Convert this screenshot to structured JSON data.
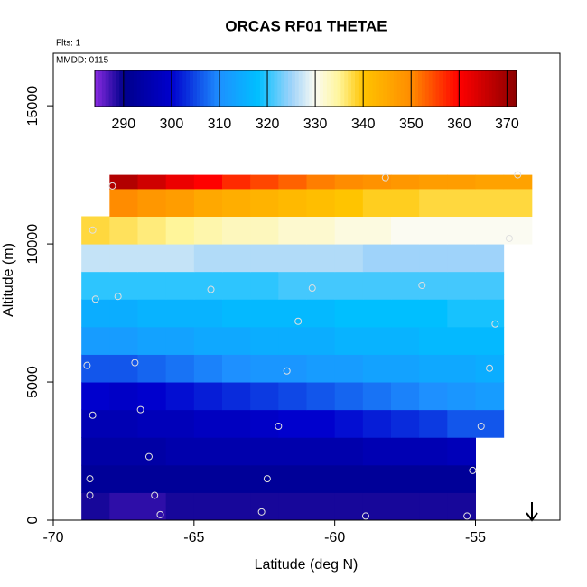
{
  "chart_data": {
    "type": "heatmap",
    "title": "ORCAS RF01 THETAE",
    "subtitle": "Flts: 1",
    "annotation": "MMDD: 0115",
    "x_label": "Latitude (deg N)",
    "y_label": "Altitude (m)",
    "xlim": [
      -70,
      -52
    ],
    "xticks": [
      -70,
      -65,
      -60,
      -55
    ],
    "ylim": [
      0,
      16900
    ],
    "yticks": [
      0,
      5000,
      10000,
      15000
    ],
    "x_edges": [
      -69,
      -68,
      -67,
      -66,
      -65,
      -64,
      -63,
      -62,
      -61,
      -60,
      -59,
      -58,
      -57,
      -56,
      -55,
      -54,
      -53
    ],
    "y_edges": [
      0,
      1000,
      2000,
      3000,
      4000,
      5000,
      6000,
      7000,
      8000,
      9000,
      10000,
      11000,
      12000,
      12500
    ],
    "z": [
      [
        289,
        288,
        288,
        289,
        289,
        289,
        289,
        289,
        289,
        289,
        289,
        289,
        289,
        289,
        null,
        null
      ],
      [
        292,
        292,
        292,
        292,
        292,
        292,
        292,
        292,
        292,
        292,
        292,
        292,
        292,
        292,
        null,
        null
      ],
      [
        294,
        294,
        294,
        295,
        295,
        295,
        295,
        295,
        295,
        295,
        296,
        296,
        296,
        297,
        null,
        null
      ],
      [
        296,
        296,
        297,
        297,
        298,
        298,
        299,
        300,
        300,
        301,
        302,
        303,
        304,
        306,
        306,
        null
      ],
      [
        300,
        299,
        300,
        301,
        302,
        303,
        304,
        305,
        306,
        307,
        308,
        309,
        310,
        311,
        312,
        null
      ],
      [
        306,
        306,
        307,
        308,
        309,
        310,
        311,
        311,
        312,
        312,
        313,
        313,
        314,
        314,
        315,
        null
      ],
      [
        312,
        312,
        313,
        313,
        314,
        314,
        315,
        315,
        315,
        316,
        316,
        316,
        317,
        317,
        317,
        null
      ],
      [
        315,
        315,
        316,
        316,
        316,
        317,
        317,
        317,
        317,
        318,
        318,
        318,
        318,
        319,
        319,
        null
      ],
      [
        320,
        320,
        320,
        320,
        320,
        320,
        320,
        321,
        321,
        321,
        321,
        321,
        321,
        321,
        321,
        null
      ],
      [
        327,
        327,
        327,
        327,
        326,
        326,
        326,
        326,
        326,
        326,
        325,
        325,
        325,
        325,
        325,
        null
      ],
      [
        338,
        337,
        336,
        335,
        334,
        333,
        333,
        332,
        332,
        331,
        331,
        330,
        330,
        330,
        330,
        330
      ],
      [
        null,
        350,
        348,
        347,
        345,
        344,
        343,
        342,
        341,
        340,
        339,
        339,
        338,
        338,
        338,
        338
      ],
      [
        null,
        368,
        365,
        362,
        360,
        357,
        355,
        353,
        351,
        350,
        349,
        348,
        347,
        347,
        346,
        346
      ]
    ],
    "colorbar_lim": [
      284,
      372
    ],
    "colorbar_ticks": [
      290,
      300,
      310,
      320,
      330,
      340,
      350,
      360,
      370
    ],
    "colormap": {
      "stops": [
        284,
        290,
        300,
        310,
        318,
        325,
        330,
        335,
        340,
        350,
        360,
        372
      ],
      "colors": [
        "#8a2be2",
        "#00008b",
        "#0000cd",
        "#1e90ff",
        "#00bfff",
        "#9fd3fa",
        "#fbfbf2",
        "#fff59a",
        "#ffc400",
        "#ff8c00",
        "#ff0000",
        "#8b0000"
      ]
    },
    "points": {
      "x": [
        -68.8,
        -68.6,
        -68.5,
        -67.7,
        -67.9,
        -67.1,
        -68.6,
        -66.9,
        -66.6,
        -68.7,
        -68.7,
        -66.4,
        -66.2,
        -64.4,
        -62.0,
        -62.4,
        -62.6,
        -61.7,
        -61.3,
        -60.8,
        -58.9,
        -58.2,
        -56.9,
        -55.1,
        -55.3,
        -54.8,
        -54.5,
        -54.3,
        -53.8,
        -53.5
      ],
      "y": [
        5600,
        10500,
        8000,
        8100,
        12100,
        5700,
        3800,
        4000,
        2300,
        1500,
        900,
        900,
        200,
        8350,
        3400,
        1500,
        300,
        5400,
        7200,
        8400,
        150,
        12400,
        8500,
        1800,
        150,
        3400,
        5500,
        7100,
        10200,
        12500
      ]
    },
    "point_color": "#e0e0e0"
  }
}
